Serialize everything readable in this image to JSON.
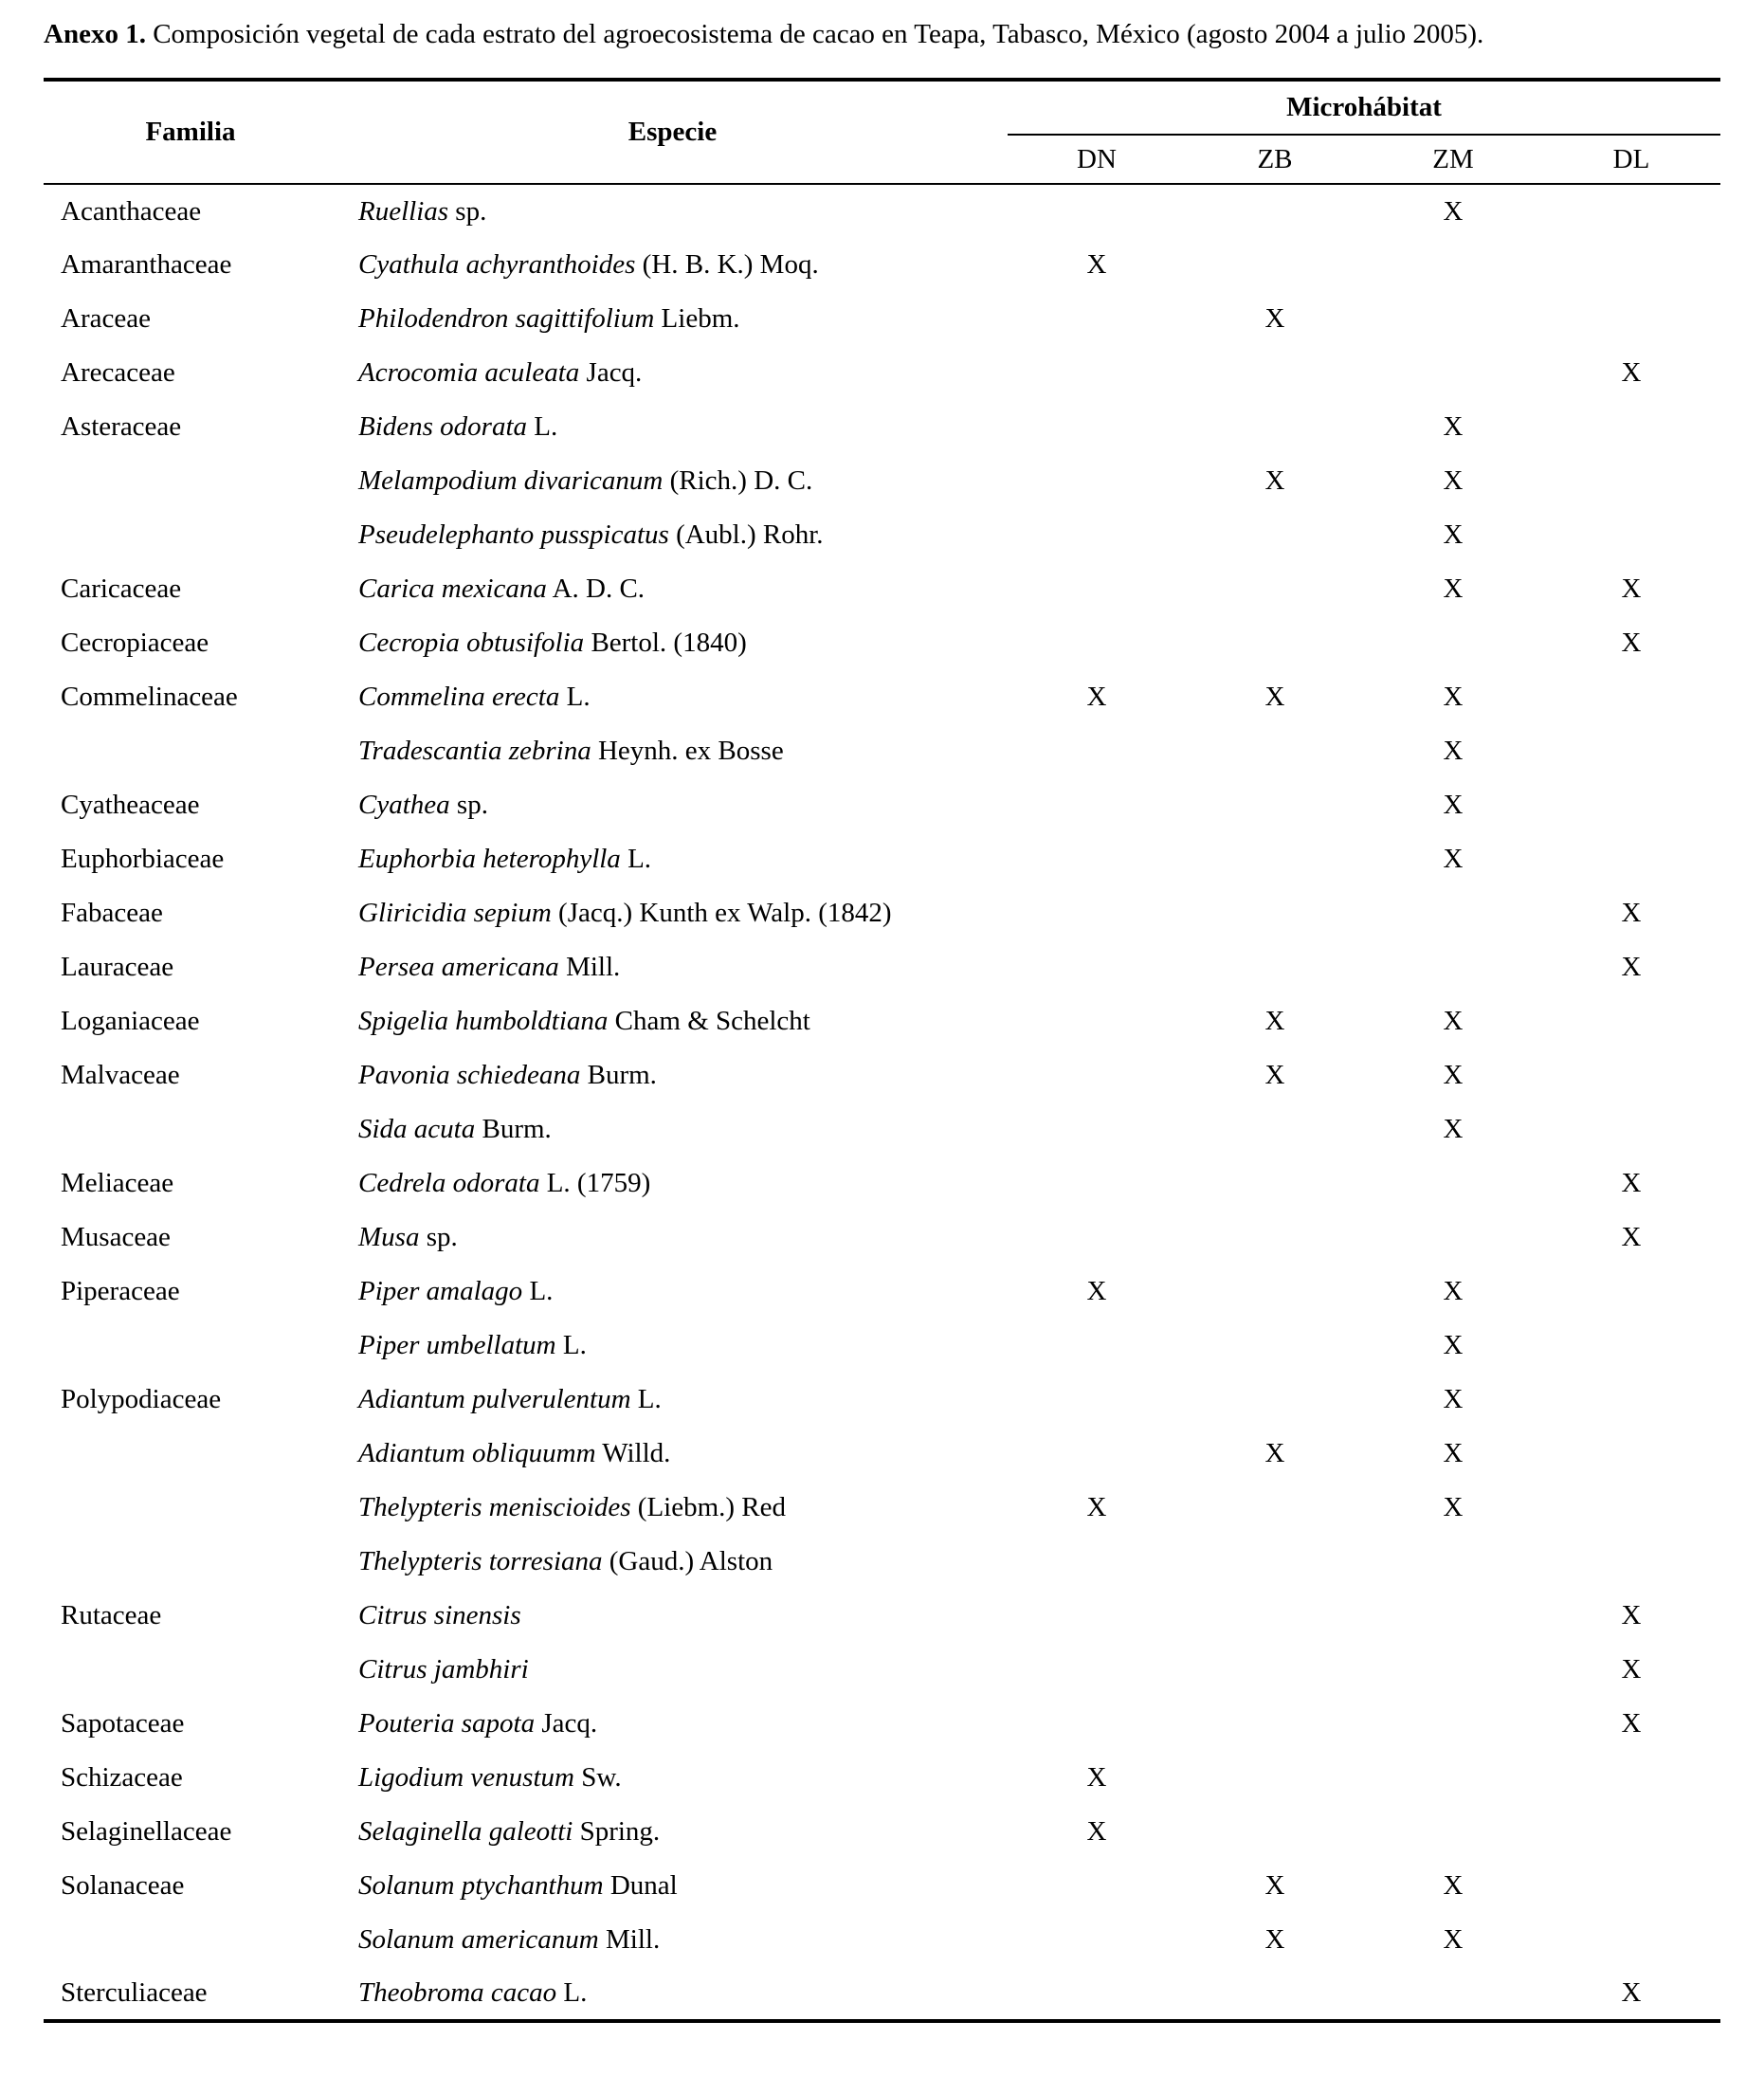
{
  "title": {
    "label": "Anexo 1.",
    "text": " Composición vegetal de cada estrato del agroecosistema de cacao en Teapa, Tabasco, México (agosto 2004 a julio 2005)."
  },
  "table": {
    "headers": {
      "familia": "Familia",
      "especie": "Especie",
      "microhabitat": "Microhábitat",
      "subcolumns": [
        "DN",
        "ZB",
        "ZM",
        "DL"
      ]
    },
    "rows": [
      {
        "fam": "Acanthaceae",
        "sp_it": "Ruellias",
        "sp_rm": " sp.",
        "dn": "",
        "zb": "",
        "zm": "X",
        "dl": ""
      },
      {
        "fam": "Amaranthaceae",
        "sp_it": "Cyathula achyranthoides",
        "sp_rm": " (H. B. K.) Moq.",
        "dn": "X",
        "zb": "",
        "zm": "",
        "dl": ""
      },
      {
        "fam": "Araceae",
        "sp_it": "Philodendron sagittifolium",
        "sp_rm": " Liebm.",
        "dn": "",
        "zb": "X",
        "zm": "",
        "dl": ""
      },
      {
        "fam": "Arecaceae",
        "sp_it": "Acrocomia aculeata",
        "sp_rm": " Jacq.",
        "dn": "",
        "zb": "",
        "zm": "",
        "dl": "X"
      },
      {
        "fam": "Asteraceae",
        "sp_it": "Bidens odorata",
        "sp_rm": " L.",
        "dn": "",
        "zb": "",
        "zm": "X",
        "dl": ""
      },
      {
        "fam": "",
        "sp_it": "Melampodium divaricanum",
        "sp_rm": " (Rich.) D. C.",
        "dn": "",
        "zb": "X",
        "zm": "X",
        "dl": ""
      },
      {
        "fam": "",
        "sp_it": "Pseudelephanto pusspicatus",
        "sp_rm": " (Aubl.) Rohr.",
        "dn": "",
        "zb": "",
        "zm": "X",
        "dl": ""
      },
      {
        "fam": "Caricaceae",
        "sp_it": "Carica mexicana",
        "sp_rm": " A. D. C.",
        "dn": "",
        "zb": "",
        "zm": "X",
        "dl": "X"
      },
      {
        "fam": "Cecropiaceae",
        "sp_it": "Cecropia obtusifolia",
        "sp_rm": " Bertol. (1840)",
        "dn": "",
        "zb": "",
        "zm": "",
        "dl": "X"
      },
      {
        "fam": "Commelinaceae",
        "sp_it": "Commelina erecta",
        "sp_rm": " L.",
        "dn": "X",
        "zb": "X",
        "zm": "X",
        "dl": ""
      },
      {
        "fam": "",
        "sp_it": "Tradescantia zebrina",
        "sp_rm": " Heynh. ex Bosse",
        "dn": "",
        "zb": "",
        "zm": "X",
        "dl": ""
      },
      {
        "fam": "Cyatheaceae",
        "sp_it": "Cyathea",
        "sp_rm": " sp.",
        "dn": "",
        "zb": "",
        "zm": "X",
        "dl": ""
      },
      {
        "fam": "Euphorbiaceae",
        "sp_it": "Euphorbia heterophylla",
        "sp_rm": " L.",
        "dn": "",
        "zb": "",
        "zm": "X",
        "dl": ""
      },
      {
        "fam": "Fabaceae",
        "sp_it": "Gliricidia sepium",
        "sp_rm": " (Jacq.) Kunth ex Walp. (1842)",
        "dn": "",
        "zb": "",
        "zm": "",
        "dl": "X"
      },
      {
        "fam": "Lauraceae",
        "sp_it": "Persea americana",
        "sp_rm": " Mill.",
        "dn": "",
        "zb": "",
        "zm": "",
        "dl": "X"
      },
      {
        "fam": "Loganiaceae",
        "sp_it": "Spigelia humboldtiana",
        "sp_rm": " Cham & Schelcht",
        "dn": "",
        "zb": "X",
        "zm": "X",
        "dl": ""
      },
      {
        "fam": "Malvaceae",
        "sp_it": "Pavonia schiedeana",
        "sp_rm": " Burm.",
        "dn": "",
        "zb": "X",
        "zm": "X",
        "dl": ""
      },
      {
        "fam": "",
        "sp_it": "Sida acuta",
        "sp_rm": " Burm.",
        "dn": "",
        "zb": "",
        "zm": "X",
        "dl": ""
      },
      {
        "fam": "Meliaceae",
        "sp_it": "Cedrela odorata",
        "sp_rm": " L. (1759)",
        "dn": "",
        "zb": "",
        "zm": "",
        "dl": "X"
      },
      {
        "fam": "Musaceae",
        "sp_it": "Musa",
        "sp_rm": " sp.",
        "dn": "",
        "zb": "",
        "zm": "",
        "dl": "X"
      },
      {
        "fam": "Piperaceae",
        "sp_it": "Piper amalago",
        "sp_rm": " L.",
        "dn": "X",
        "zb": "",
        "zm": "X",
        "dl": ""
      },
      {
        "fam": "",
        "sp_it": "Piper umbellatum",
        "sp_rm": " L.",
        "dn": "",
        "zb": "",
        "zm": "X",
        "dl": ""
      },
      {
        "fam": "Polypodiaceae",
        "sp_it": "Adiantum pulverulentum",
        "sp_rm": " L.",
        "dn": "",
        "zb": "",
        "zm": "X",
        "dl": ""
      },
      {
        "fam": "",
        "sp_it": "Adiantum obliquumm",
        "sp_rm": " Willd.",
        "dn": "",
        "zb": "X",
        "zm": "X",
        "dl": ""
      },
      {
        "fam": "",
        "sp_it": "Thelypteris meniscioides",
        "sp_rm": " (Liebm.) Red",
        "dn": "X",
        "zb": "",
        "zm": "X",
        "dl": ""
      },
      {
        "fam": "",
        "sp_it": "Thelypteris torresiana",
        "sp_rm": " (Gaud.) Alston",
        "dn": "",
        "zb": "",
        "zm": "",
        "dl": ""
      },
      {
        "fam": "Rutaceae",
        "sp_it": "Citrus sinensis",
        "sp_rm": "",
        "dn": "",
        "zb": "",
        "zm": "",
        "dl": "X"
      },
      {
        "fam": "",
        "sp_it": "Citrus jambhiri",
        "sp_rm": "",
        "dn": "",
        "zb": "",
        "zm": "",
        "dl": "X"
      },
      {
        "fam": "Sapotaceae",
        "sp_it": "Pouteria sapota",
        "sp_rm": " Jacq.",
        "dn": "",
        "zb": "",
        "zm": "",
        "dl": "X"
      },
      {
        "fam": "Schizaceae",
        "sp_it": "Ligodium venustum",
        "sp_rm": " Sw.",
        "dn": "X",
        "zb": "",
        "zm": "",
        "dl": ""
      },
      {
        "fam": "Selaginellaceae",
        "sp_it": "Selaginella galeotti",
        "sp_rm": " Spring.",
        "dn": "X",
        "zb": "",
        "zm": "",
        "dl": ""
      },
      {
        "fam": "Solanaceae",
        "sp_it": "Solanum ptychanthum",
        "sp_rm": " Dunal",
        "dn": "",
        "zb": "X",
        "zm": "X",
        "dl": ""
      },
      {
        "fam": "",
        "sp_it": "Solanum americanum",
        "sp_rm": " Mill.",
        "dn": "",
        "zb": "X",
        "zm": "X",
        "dl": ""
      },
      {
        "fam": "Sterculiaceae",
        "sp_it": "Theobroma cacao",
        "sp_rm": " L.",
        "dn": "",
        "zb": "",
        "zm": "",
        "dl": "X"
      }
    ]
  }
}
